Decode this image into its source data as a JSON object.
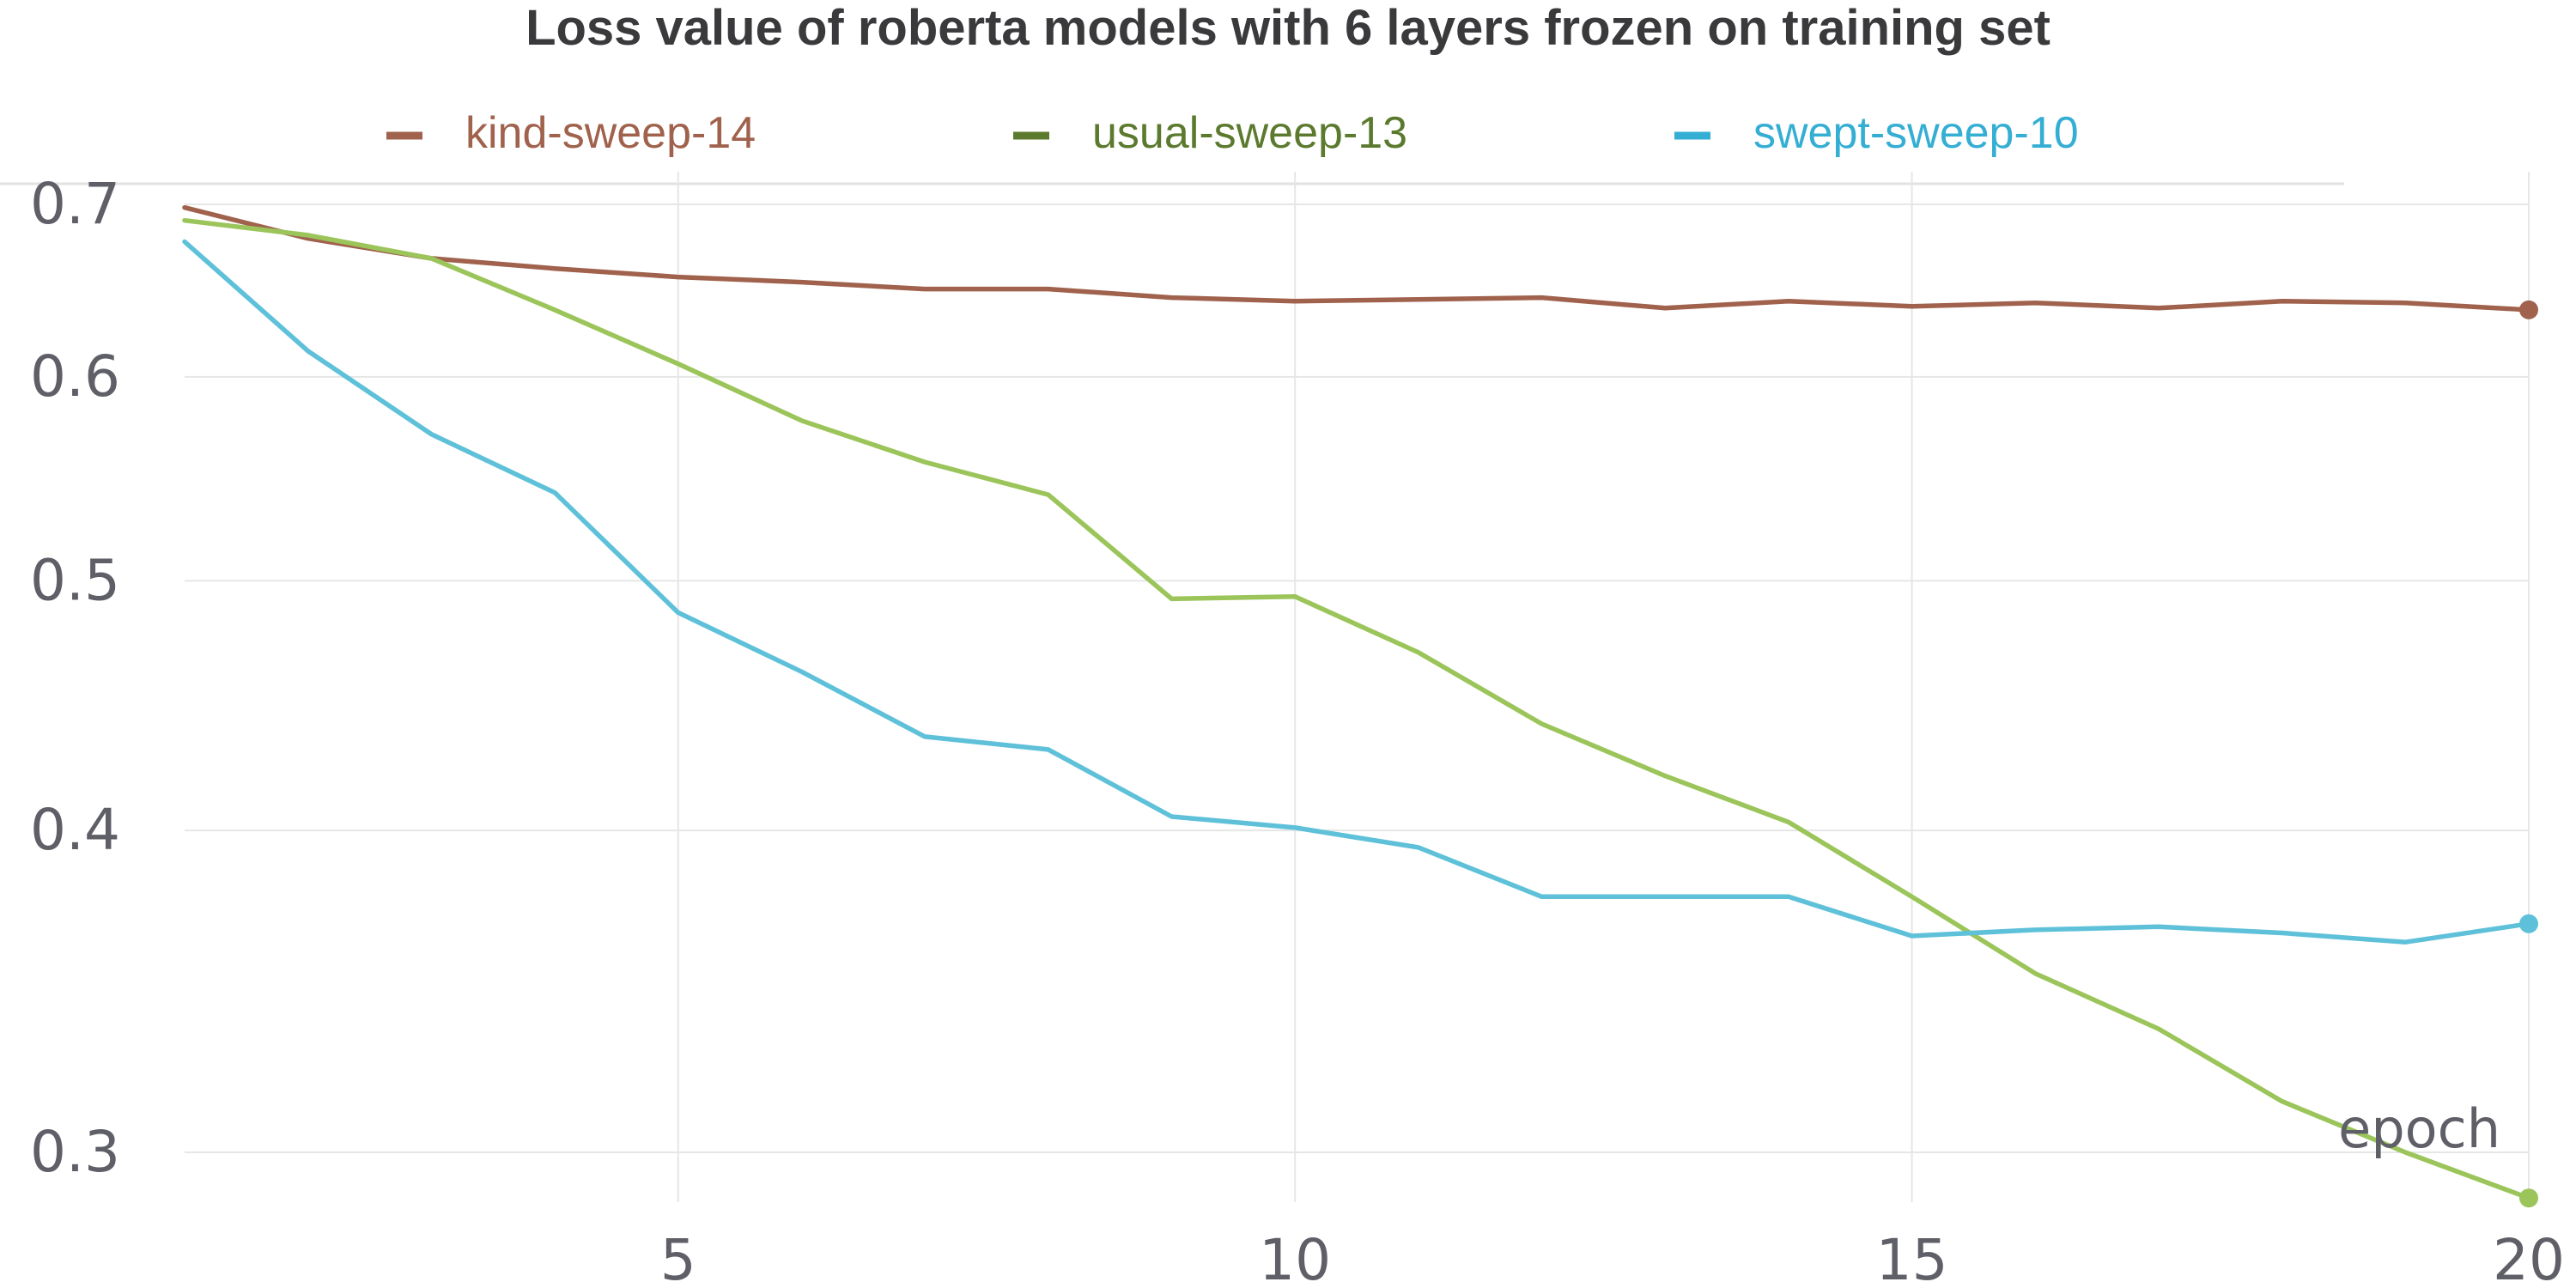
{
  "chart_data": {
    "type": "line",
    "title": "Loss value of roberta models with 6 layers frozen on training set",
    "xlabel": "epoch",
    "ylabel": "",
    "x_scale": "linear",
    "y_scale": "log",
    "xlim": [
      1,
      20
    ],
    "ylim": [
      0.29,
      0.71
    ],
    "x_ticks": [
      5,
      10,
      15,
      20
    ],
    "y_ticks": [
      0.3,
      0.4,
      0.5,
      0.6,
      0.7
    ],
    "grid": true,
    "legend_position": "top",
    "x": [
      1,
      2,
      3,
      4,
      5,
      6,
      7,
      8,
      9,
      10,
      11,
      12,
      13,
      14,
      15,
      16,
      17,
      18,
      19,
      20
    ],
    "series": [
      {
        "name": "kind-sweep-14",
        "color": "#a0624c",
        "legend_color": "#a0624c",
        "values": [
          0.698,
          0.679,
          0.667,
          0.661,
          0.656,
          0.653,
          0.649,
          0.649,
          0.644,
          0.642,
          0.643,
          0.644,
          0.638,
          0.642,
          0.639,
          0.641,
          0.638,
          0.642,
          0.641,
          0.637
        ]
      },
      {
        "name": "usual-sweep-13",
        "color": "#9bc55a",
        "legend_color": "#5b7a2e",
        "values": [
          0.69,
          0.681,
          0.667,
          0.637,
          0.607,
          0.577,
          0.556,
          0.54,
          0.492,
          0.493,
          0.469,
          0.44,
          0.42,
          0.403,
          0.377,
          0.352,
          0.335,
          0.314,
          0.3,
          0.288
        ]
      },
      {
        "name": "swept-sweep-10",
        "color": "#5ec1d9",
        "legend_color": "#35aed4",
        "values": [
          0.677,
          0.614,
          0.57,
          0.541,
          0.486,
          0.461,
          0.435,
          0.43,
          0.405,
          0.401,
          0.394,
          0.377,
          0.377,
          0.377,
          0.364,
          0.366,
          0.367,
          0.365,
          0.362,
          0.368
        ]
      }
    ]
  }
}
